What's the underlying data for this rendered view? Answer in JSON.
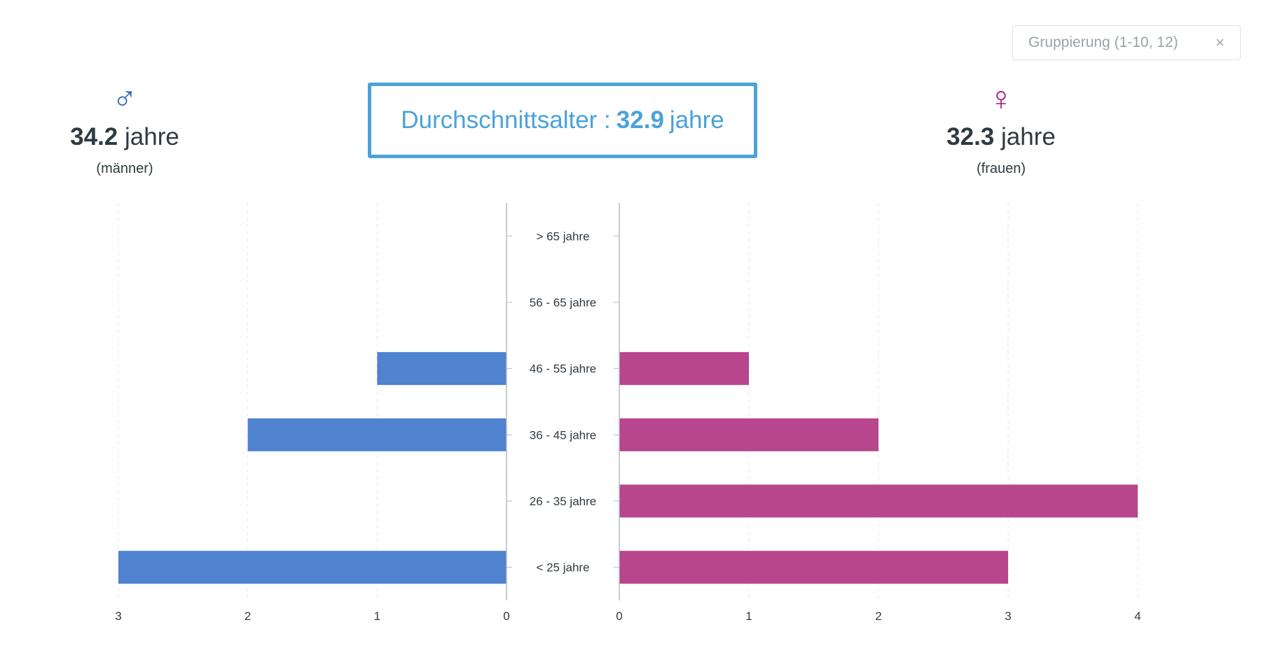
{
  "grouping": {
    "label": "Gruppierung (1-10, 12)",
    "close": "×"
  },
  "male": {
    "symbol": "♂",
    "age": "34.2",
    "unit": "jahre",
    "label": "(männer)"
  },
  "female": {
    "symbol": "♀",
    "age": "32.3",
    "unit": "jahre",
    "label": "(frauen)"
  },
  "average": {
    "label": "Durchschnittsalter :",
    "value": "32.9",
    "unit": "jahre"
  },
  "colors": {
    "male": "#4f82cf",
    "female": "#b8468c",
    "accent": "#4aa2d9"
  },
  "chart_data": {
    "type": "bar",
    "categories": [
      "> 65 jahre",
      "56 - 65 jahre",
      "46 - 55 jahre",
      "36 - 45 jahre",
      "26 - 35 jahre",
      "< 25 jahre"
    ],
    "series": [
      {
        "values": [
          0,
          0,
          1,
          2,
          0,
          3
        ]
      },
      {
        "values": [
          0,
          0,
          1,
          2,
          4,
          3
        ]
      }
    ],
    "left_axis": {
      "ticks": [
        3,
        2,
        1,
        0
      ],
      "range": [
        0,
        3
      ]
    },
    "right_axis": {
      "ticks": [
        0,
        1,
        2,
        3,
        4
      ],
      "range": [
        0,
        4
      ]
    }
  }
}
